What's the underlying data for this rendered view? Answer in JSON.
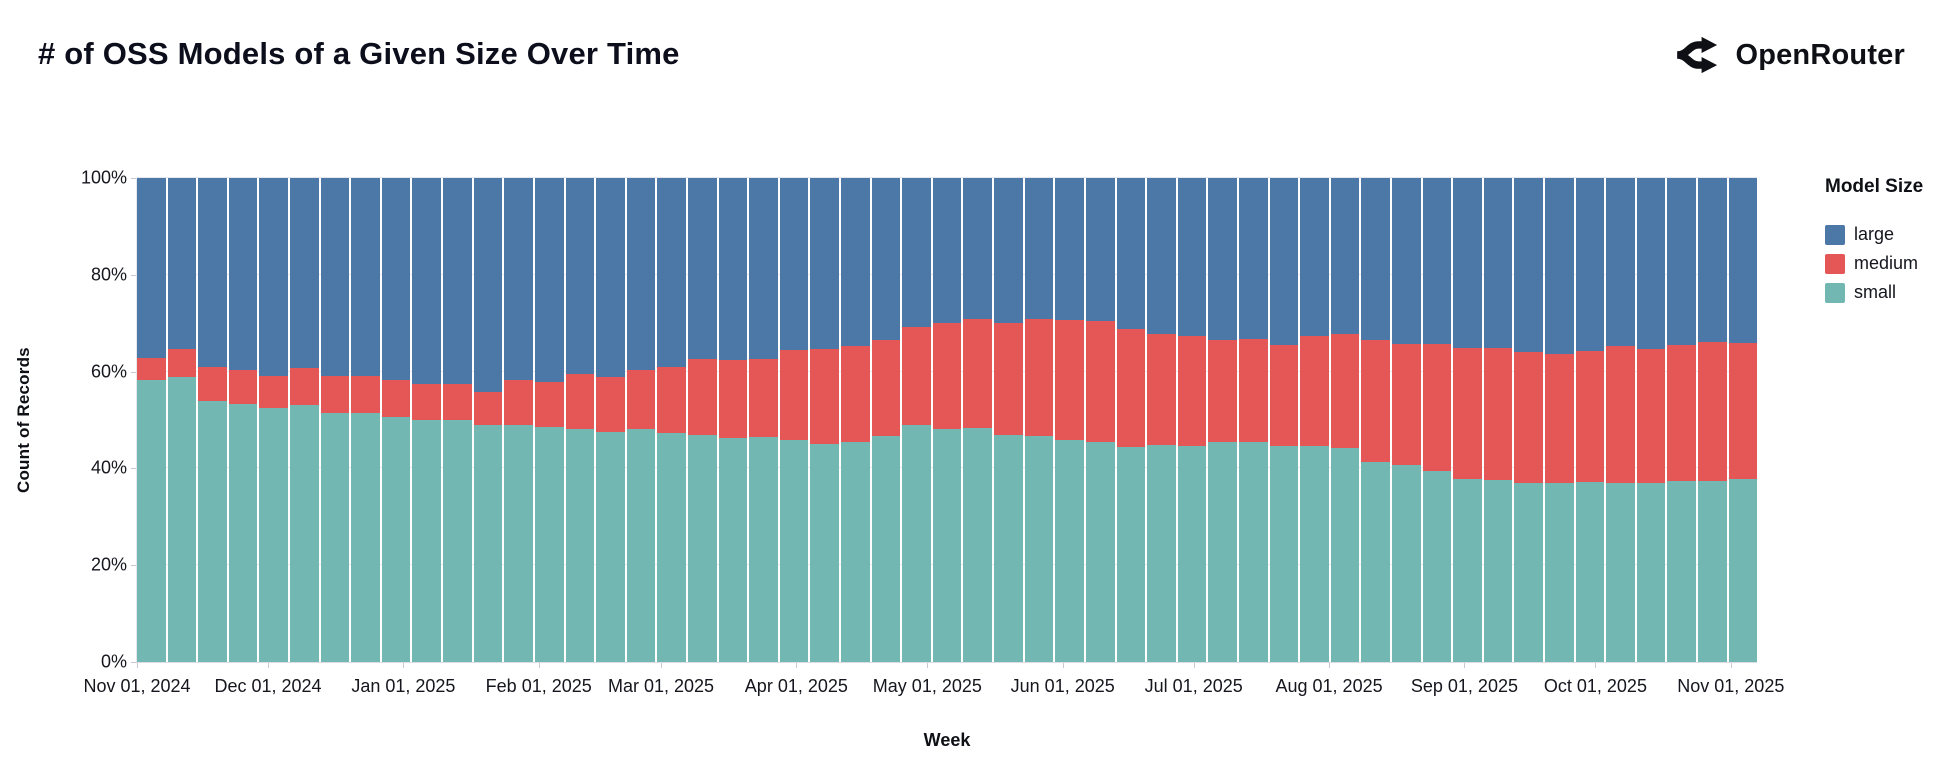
{
  "header": {
    "title": "# of OSS Models of a Given Size Over Time",
    "brand": "OpenRouter"
  },
  "chart_data": {
    "type": "bar",
    "stacked": true,
    "normalized": "percent",
    "title": "# of OSS Models of a Given Size Over Time",
    "xlabel": "Week",
    "ylabel": "Count of Records",
    "ylim": [
      0,
      100
    ],
    "grid": true,
    "legend_position": "right",
    "legend_title": "Model Size",
    "y_ticks": [
      {
        "label": "0%",
        "value": 0
      },
      {
        "label": "20%",
        "value": 20
      },
      {
        "label": "40%",
        "value": 40
      },
      {
        "label": "60%",
        "value": 60
      },
      {
        "label": "80%",
        "value": 80
      },
      {
        "label": "100%",
        "value": 100
      }
    ],
    "x_ticks": [
      {
        "label": "Nov 01, 2024",
        "day": 0
      },
      {
        "label": "Dec 01, 2024",
        "day": 30
      },
      {
        "label": "Jan 01, 2025",
        "day": 61
      },
      {
        "label": "Feb 01, 2025",
        "day": 92
      },
      {
        "label": "Mar 01, 2025",
        "day": 120
      },
      {
        "label": "Apr 01, 2025",
        "day": 151
      },
      {
        "label": "May 01, 2025",
        "day": 181
      },
      {
        "label": "Jun 01, 2025",
        "day": 212
      },
      {
        "label": "Jul 01, 2025",
        "day": 242
      },
      {
        "label": "Aug 01, 2025",
        "day": 273
      },
      {
        "label": "Sep 01, 2025",
        "day": 304
      },
      {
        "label": "Oct 01, 2025",
        "day": 334
      },
      {
        "label": "Nov 01, 2025",
        "day": 365
      }
    ],
    "axis_total_days": 371,
    "weeks": [
      "2024-11-01",
      "2024-11-08",
      "2024-11-15",
      "2024-11-22",
      "2024-11-29",
      "2024-12-06",
      "2024-12-13",
      "2024-12-20",
      "2024-12-27",
      "2025-01-03",
      "2025-01-10",
      "2025-01-17",
      "2025-01-24",
      "2025-01-31",
      "2025-02-07",
      "2025-02-14",
      "2025-02-21",
      "2025-02-28",
      "2025-03-07",
      "2025-03-14",
      "2025-03-21",
      "2025-03-28",
      "2025-04-04",
      "2025-04-11",
      "2025-04-18",
      "2025-04-25",
      "2025-05-02",
      "2025-05-09",
      "2025-05-16",
      "2025-05-23",
      "2025-05-30",
      "2025-06-06",
      "2025-06-13",
      "2025-06-20",
      "2025-06-27",
      "2025-07-04",
      "2025-07-11",
      "2025-07-18",
      "2025-07-25",
      "2025-08-01",
      "2025-08-08",
      "2025-08-15",
      "2025-08-22",
      "2025-08-29",
      "2025-09-05",
      "2025-09-12",
      "2025-09-19",
      "2025-09-26",
      "2025-10-03",
      "2025-10-10",
      "2025-10-17",
      "2025-10-24",
      "2025-10-31"
    ],
    "series": [
      {
        "name": "large",
        "color": "#4c78a8",
        "values": [
          37.2,
          35.4,
          39.0,
          39.6,
          41.0,
          39.2,
          40.9,
          40.9,
          41.8,
          42.5,
          42.5,
          44.3,
          41.7,
          42.2,
          40.5,
          41.2,
          39.7,
          39.0,
          37.4,
          37.7,
          37.4,
          35.5,
          35.4,
          34.7,
          33.5,
          30.8,
          29.9,
          29.2,
          30.0,
          29.2,
          29.4,
          29.6,
          31.1,
          32.2,
          32.7,
          33.5,
          33.3,
          34.6,
          32.7,
          32.3,
          33.4,
          34.4,
          34.4,
          35.2,
          35.2,
          35.9,
          36.3,
          35.7,
          34.8,
          35.4,
          34.5,
          33.9,
          34.0
        ]
      },
      {
        "name": "medium",
        "color": "#e45756",
        "values": [
          4.6,
          5.8,
          7.0,
          7.0,
          6.5,
          7.6,
          7.7,
          7.7,
          7.5,
          7.5,
          7.5,
          6.7,
          9.4,
          9.2,
          11.3,
          11.3,
          12.1,
          13.7,
          15.6,
          16.0,
          16.1,
          18.7,
          19.6,
          19.9,
          19.9,
          20.3,
          21.9,
          22.4,
          23.2,
          24.2,
          24.7,
          25.0,
          24.5,
          23.0,
          22.7,
          21.1,
          21.3,
          20.8,
          22.7,
          23.4,
          25.3,
          24.8,
          26.2,
          26.9,
          27.1,
          27.1,
          26.8,
          27.2,
          28.2,
          27.6,
          28.1,
          28.7,
          28.1
        ]
      },
      {
        "name": "small",
        "color": "#72b7b2",
        "values": [
          58.2,
          58.8,
          54.0,
          53.4,
          52.5,
          53.2,
          51.4,
          51.4,
          50.7,
          50.0,
          50.0,
          49.0,
          48.9,
          48.6,
          48.2,
          47.5,
          48.2,
          47.3,
          47.0,
          46.3,
          46.5,
          45.8,
          45.0,
          45.4,
          46.6,
          48.9,
          48.2,
          48.4,
          46.8,
          46.6,
          45.9,
          45.4,
          44.4,
          44.8,
          44.6,
          45.4,
          45.4,
          44.6,
          44.6,
          44.3,
          41.3,
          40.8,
          39.4,
          37.9,
          37.7,
          37.0,
          36.9,
          37.1,
          37.0,
          37.0,
          37.4,
          37.4,
          37.9
        ]
      }
    ],
    "legend_entries": [
      "large",
      "medium",
      "small"
    ]
  }
}
